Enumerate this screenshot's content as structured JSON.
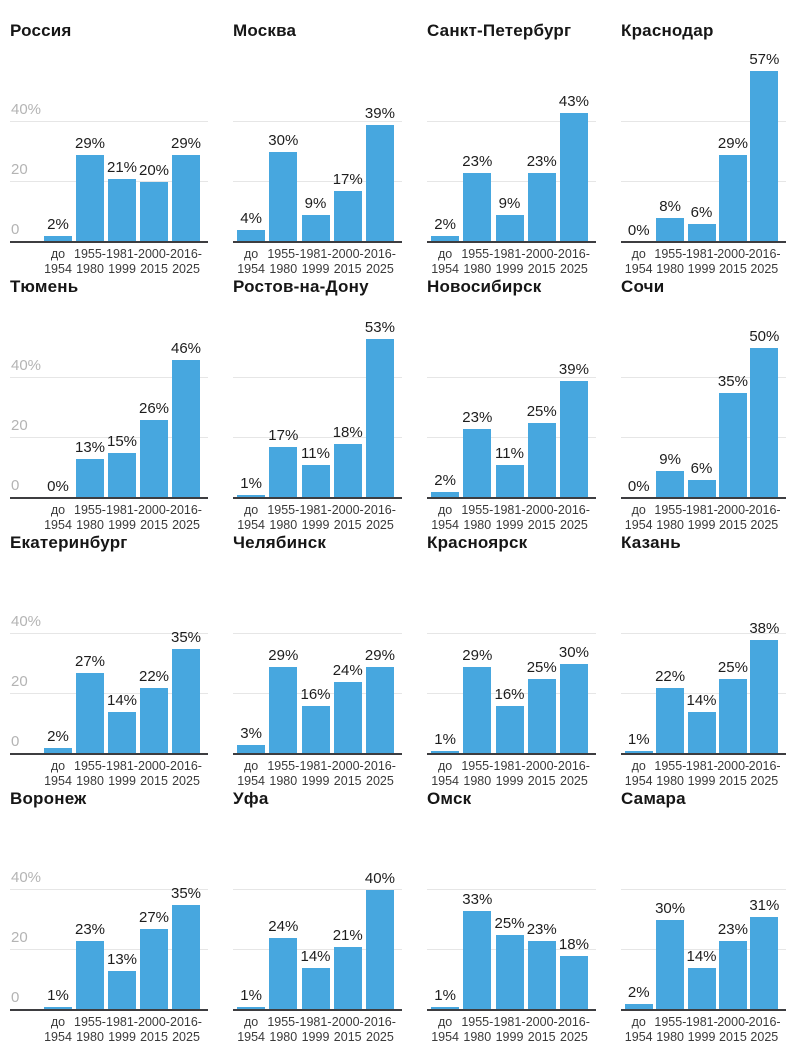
{
  "page": {
    "background": "#ffffff"
  },
  "colors": {
    "bar": "#47a7df",
    "gridline": "#e6e6e6",
    "axis": "#3d3d40",
    "title": "#161616",
    "value_label": "#1d1d1d",
    "x_tick_label": "#3a3a3a",
    "y_tick_label": "#b4b4b4"
  },
  "chart_data": {
    "type": "bar",
    "layout": "small-multiples-grid-4x4",
    "unit": "percent",
    "grid": true,
    "legend": false,
    "ylim": [
      0,
      62
    ],
    "yticks": [
      {
        "value": 40,
        "label": "40%"
      },
      {
        "value": 20,
        "label": "20"
      },
      {
        "value": 0,
        "label": "0"
      }
    ],
    "gridlines": [
      20,
      40
    ],
    "categories": [
      "до 1954",
      "1955-1980",
      "1981-1999",
      "2000-2015",
      "2016-2025"
    ],
    "categories_lines": [
      [
        "до",
        "1954"
      ],
      [
        "1955-",
        "1980"
      ],
      [
        "1981-",
        "1999"
      ],
      [
        "2000-",
        "2015"
      ],
      [
        "2016-",
        "2025"
      ]
    ],
    "charts": [
      {
        "title": "Россия",
        "values": [
          2,
          29,
          21,
          20,
          29
        ],
        "value_labels": [
          "2%",
          "29%",
          "21%",
          "20%",
          "29%"
        ]
      },
      {
        "title": "Москва",
        "values": [
          4,
          30,
          9,
          17,
          39
        ],
        "value_labels": [
          "4%",
          "30%",
          "9%",
          "17%",
          "39%"
        ]
      },
      {
        "title": "Санкт-Петербург",
        "values": [
          2,
          23,
          9,
          23,
          43
        ],
        "value_labels": [
          "2%",
          "23%",
          "9%",
          "23%",
          "43%"
        ]
      },
      {
        "title": "Краснодар",
        "values": [
          0,
          8,
          6,
          29,
          57
        ],
        "value_labels": [
          "0%",
          "8%",
          "6%",
          "29%",
          "57%"
        ]
      },
      {
        "title": "Тюмень",
        "values": [
          0,
          13,
          15,
          26,
          46
        ],
        "value_labels": [
          "0%",
          "13%",
          "15%",
          "26%",
          "46%"
        ]
      },
      {
        "title": "Ростов-на-Дону",
        "values": [
          1,
          17,
          11,
          18,
          53
        ],
        "value_labels": [
          "1%",
          "17%",
          "11%",
          "18%",
          "53%"
        ]
      },
      {
        "title": "Новосибирск",
        "values": [
          2,
          23,
          11,
          25,
          39
        ],
        "value_labels": [
          "2%",
          "23%",
          "11%",
          "25%",
          "39%"
        ]
      },
      {
        "title": "Сочи",
        "values": [
          0,
          9,
          6,
          35,
          50
        ],
        "value_labels": [
          "0%",
          "9%",
          "6%",
          "35%",
          "50%"
        ]
      },
      {
        "title": "Екатеринбург",
        "values": [
          2,
          27,
          14,
          22,
          35
        ],
        "value_labels": [
          "2%",
          "27%",
          "14%",
          "22%",
          "35%"
        ]
      },
      {
        "title": "Челябинск",
        "values": [
          3,
          29,
          16,
          24,
          29
        ],
        "value_labels": [
          "3%",
          "29%",
          "16%",
          "24%",
          "29%"
        ]
      },
      {
        "title": "Красноярск",
        "values": [
          1,
          29,
          16,
          25,
          30
        ],
        "value_labels": [
          "1%",
          "29%",
          "16%",
          "25%",
          "30%"
        ]
      },
      {
        "title": "Казань",
        "values": [
          1,
          22,
          14,
          25,
          38
        ],
        "value_labels": [
          "1%",
          "22%",
          "14%",
          "25%",
          "38%"
        ]
      },
      {
        "title": "Воронеж",
        "values": [
          1,
          23,
          13,
          27,
          35
        ],
        "value_labels": [
          "1%",
          "23%",
          "13%",
          "27%",
          "35%"
        ]
      },
      {
        "title": "Уфа",
        "values": [
          1,
          24,
          14,
          21,
          40
        ],
        "value_labels": [
          "1%",
          "24%",
          "14%",
          "21%",
          "40%"
        ]
      },
      {
        "title": "Омск",
        "values": [
          1,
          33,
          25,
          23,
          18
        ],
        "value_labels": [
          "1%",
          "33%",
          "25%",
          "23%",
          "18%"
        ]
      },
      {
        "title": "Самара",
        "values": [
          2,
          30,
          14,
          23,
          31
        ],
        "value_labels": [
          "2%",
          "30%",
          "14%",
          "23%",
          "31%"
        ]
      }
    ]
  }
}
